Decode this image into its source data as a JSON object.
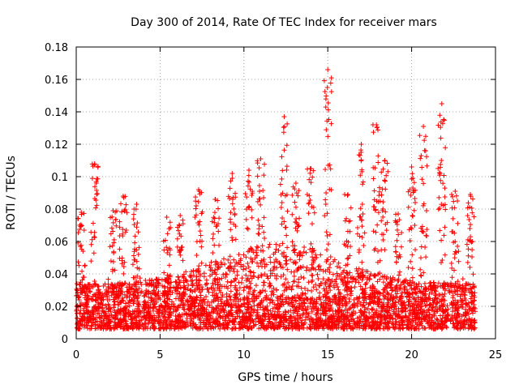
{
  "chart_data": {
    "type": "scatter",
    "title": "Day 300 of 2014, Rate Of TEC Index for receiver mars",
    "xlabel": "GPS time / hours",
    "ylabel": "ROTI / TECUs",
    "xlim": [
      0,
      25
    ],
    "ylim": [
      0,
      0.18
    ],
    "xticks": [
      0,
      5,
      10,
      15,
      20,
      25
    ],
    "yticks": [
      0,
      0.02,
      0.04,
      0.06,
      0.08,
      0.1,
      0.12,
      0.14,
      0.16,
      0.18
    ],
    "xtick_labels": [
      "0",
      "5",
      "10",
      "15",
      "20",
      "25"
    ],
    "ytick_labels": [
      "0",
      "0.02",
      "0.04",
      "0.06",
      "0.08",
      "0.1",
      "0.12",
      "0.14",
      "0.16",
      "0.18"
    ],
    "grid": true,
    "marker": "+",
    "series_color": "#ff0000",
    "data_x_range": [
      0,
      23.8
    ],
    "baseline_band": [
      0.006,
      0.026
    ],
    "notable_spikes": [
      {
        "x": 0.3,
        "y": 0.078
      },
      {
        "x": 1.1,
        "y": 0.108
      },
      {
        "x": 2.2,
        "y": 0.079
      },
      {
        "x": 2.8,
        "y": 0.088
      },
      {
        "x": 3.6,
        "y": 0.083
      },
      {
        "x": 5.4,
        "y": 0.075
      },
      {
        "x": 6.2,
        "y": 0.076
      },
      {
        "x": 7.3,
        "y": 0.092
      },
      {
        "x": 8.3,
        "y": 0.086
      },
      {
        "x": 9.3,
        "y": 0.102
      },
      {
        "x": 10.3,
        "y": 0.104
      },
      {
        "x": 11.0,
        "y": 0.111
      },
      {
        "x": 12.4,
        "y": 0.137
      },
      {
        "x": 13.1,
        "y": 0.096
      },
      {
        "x": 14.0,
        "y": 0.105
      },
      {
        "x": 15.0,
        "y": 0.166
      },
      {
        "x": 16.2,
        "y": 0.089
      },
      {
        "x": 17.0,
        "y": 0.12
      },
      {
        "x": 17.9,
        "y": 0.132
      },
      {
        "x": 18.4,
        "y": 0.11
      },
      {
        "x": 19.2,
        "y": 0.077
      },
      {
        "x": 20.0,
        "y": 0.106
      },
      {
        "x": 20.7,
        "y": 0.131
      },
      {
        "x": 21.8,
        "y": 0.145
      },
      {
        "x": 22.6,
        "y": 0.091
      },
      {
        "x": 23.5,
        "y": 0.089
      }
    ]
  }
}
